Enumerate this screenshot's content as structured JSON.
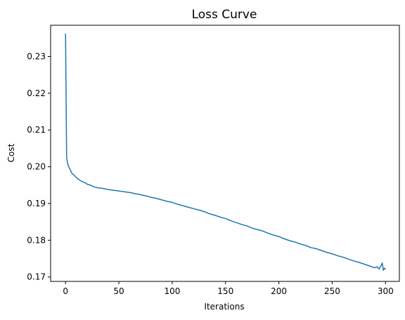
{
  "chart_data": {
    "type": "line",
    "title": "Loss Curve",
    "xlabel": "Iterations",
    "ylabel": "Cost",
    "xlim": [
      -14,
      313
    ],
    "ylim": [
      0.1688,
      0.2385
    ],
    "xticks": [
      0,
      50,
      100,
      150,
      200,
      250,
      300
    ],
    "yticks": [
      0.17,
      0.18,
      0.19,
      0.2,
      0.21,
      0.22,
      0.23
    ],
    "grid": false,
    "series": [
      {
        "color": "#1f77b4",
        "x": [
          0,
          1,
          2,
          3,
          4,
          5,
          6,
          7,
          8,
          9,
          10,
          12,
          14,
          16,
          18,
          20,
          22,
          24,
          26,
          28,
          30,
          35,
          40,
          45,
          50,
          55,
          60,
          65,
          70,
          75,
          80,
          85,
          90,
          95,
          100,
          105,
          110,
          115,
          120,
          125,
          130,
          135,
          140,
          145,
          150,
          155,
          160,
          165,
          170,
          175,
          180,
          185,
          190,
          195,
          200,
          205,
          210,
          215,
          220,
          225,
          230,
          235,
          240,
          245,
          250,
          255,
          260,
          265,
          270,
          275,
          280,
          285,
          288,
          290,
          292,
          294,
          296,
          297,
          298,
          299,
          300
        ],
        "values": [
          0.2362,
          0.2025,
          0.2008,
          0.2,
          0.1994,
          0.1988,
          0.1982,
          0.1979,
          0.1977,
          0.1974,
          0.1971,
          0.1966,
          0.1962,
          0.1959,
          0.1957,
          0.1953,
          0.1951,
          0.1949,
          0.1946,
          0.1944,
          0.1943,
          0.1941,
          0.1938,
          0.1936,
          0.1934,
          0.1932,
          0.193,
          0.1927,
          0.1924,
          0.1921,
          0.1917,
          0.1914,
          0.191,
          0.1906,
          0.1903,
          0.1898,
          0.1894,
          0.189,
          0.1886,
          0.1882,
          0.1878,
          0.1872,
          0.1868,
          0.1863,
          0.1859,
          0.1853,
          0.1848,
          0.1843,
          0.1839,
          0.1833,
          0.1829,
          0.1825,
          0.1819,
          0.1814,
          0.181,
          0.1804,
          0.1799,
          0.1795,
          0.179,
          0.1786,
          0.178,
          0.1777,
          0.1772,
          0.1767,
          0.1763,
          0.1758,
          0.1754,
          0.1749,
          0.1744,
          0.174,
          0.1735,
          0.173,
          0.1727,
          0.1725,
          0.1728,
          0.1722,
          0.1732,
          0.1738,
          0.1718,
          0.1724,
          0.1721
        ]
      }
    ]
  }
}
